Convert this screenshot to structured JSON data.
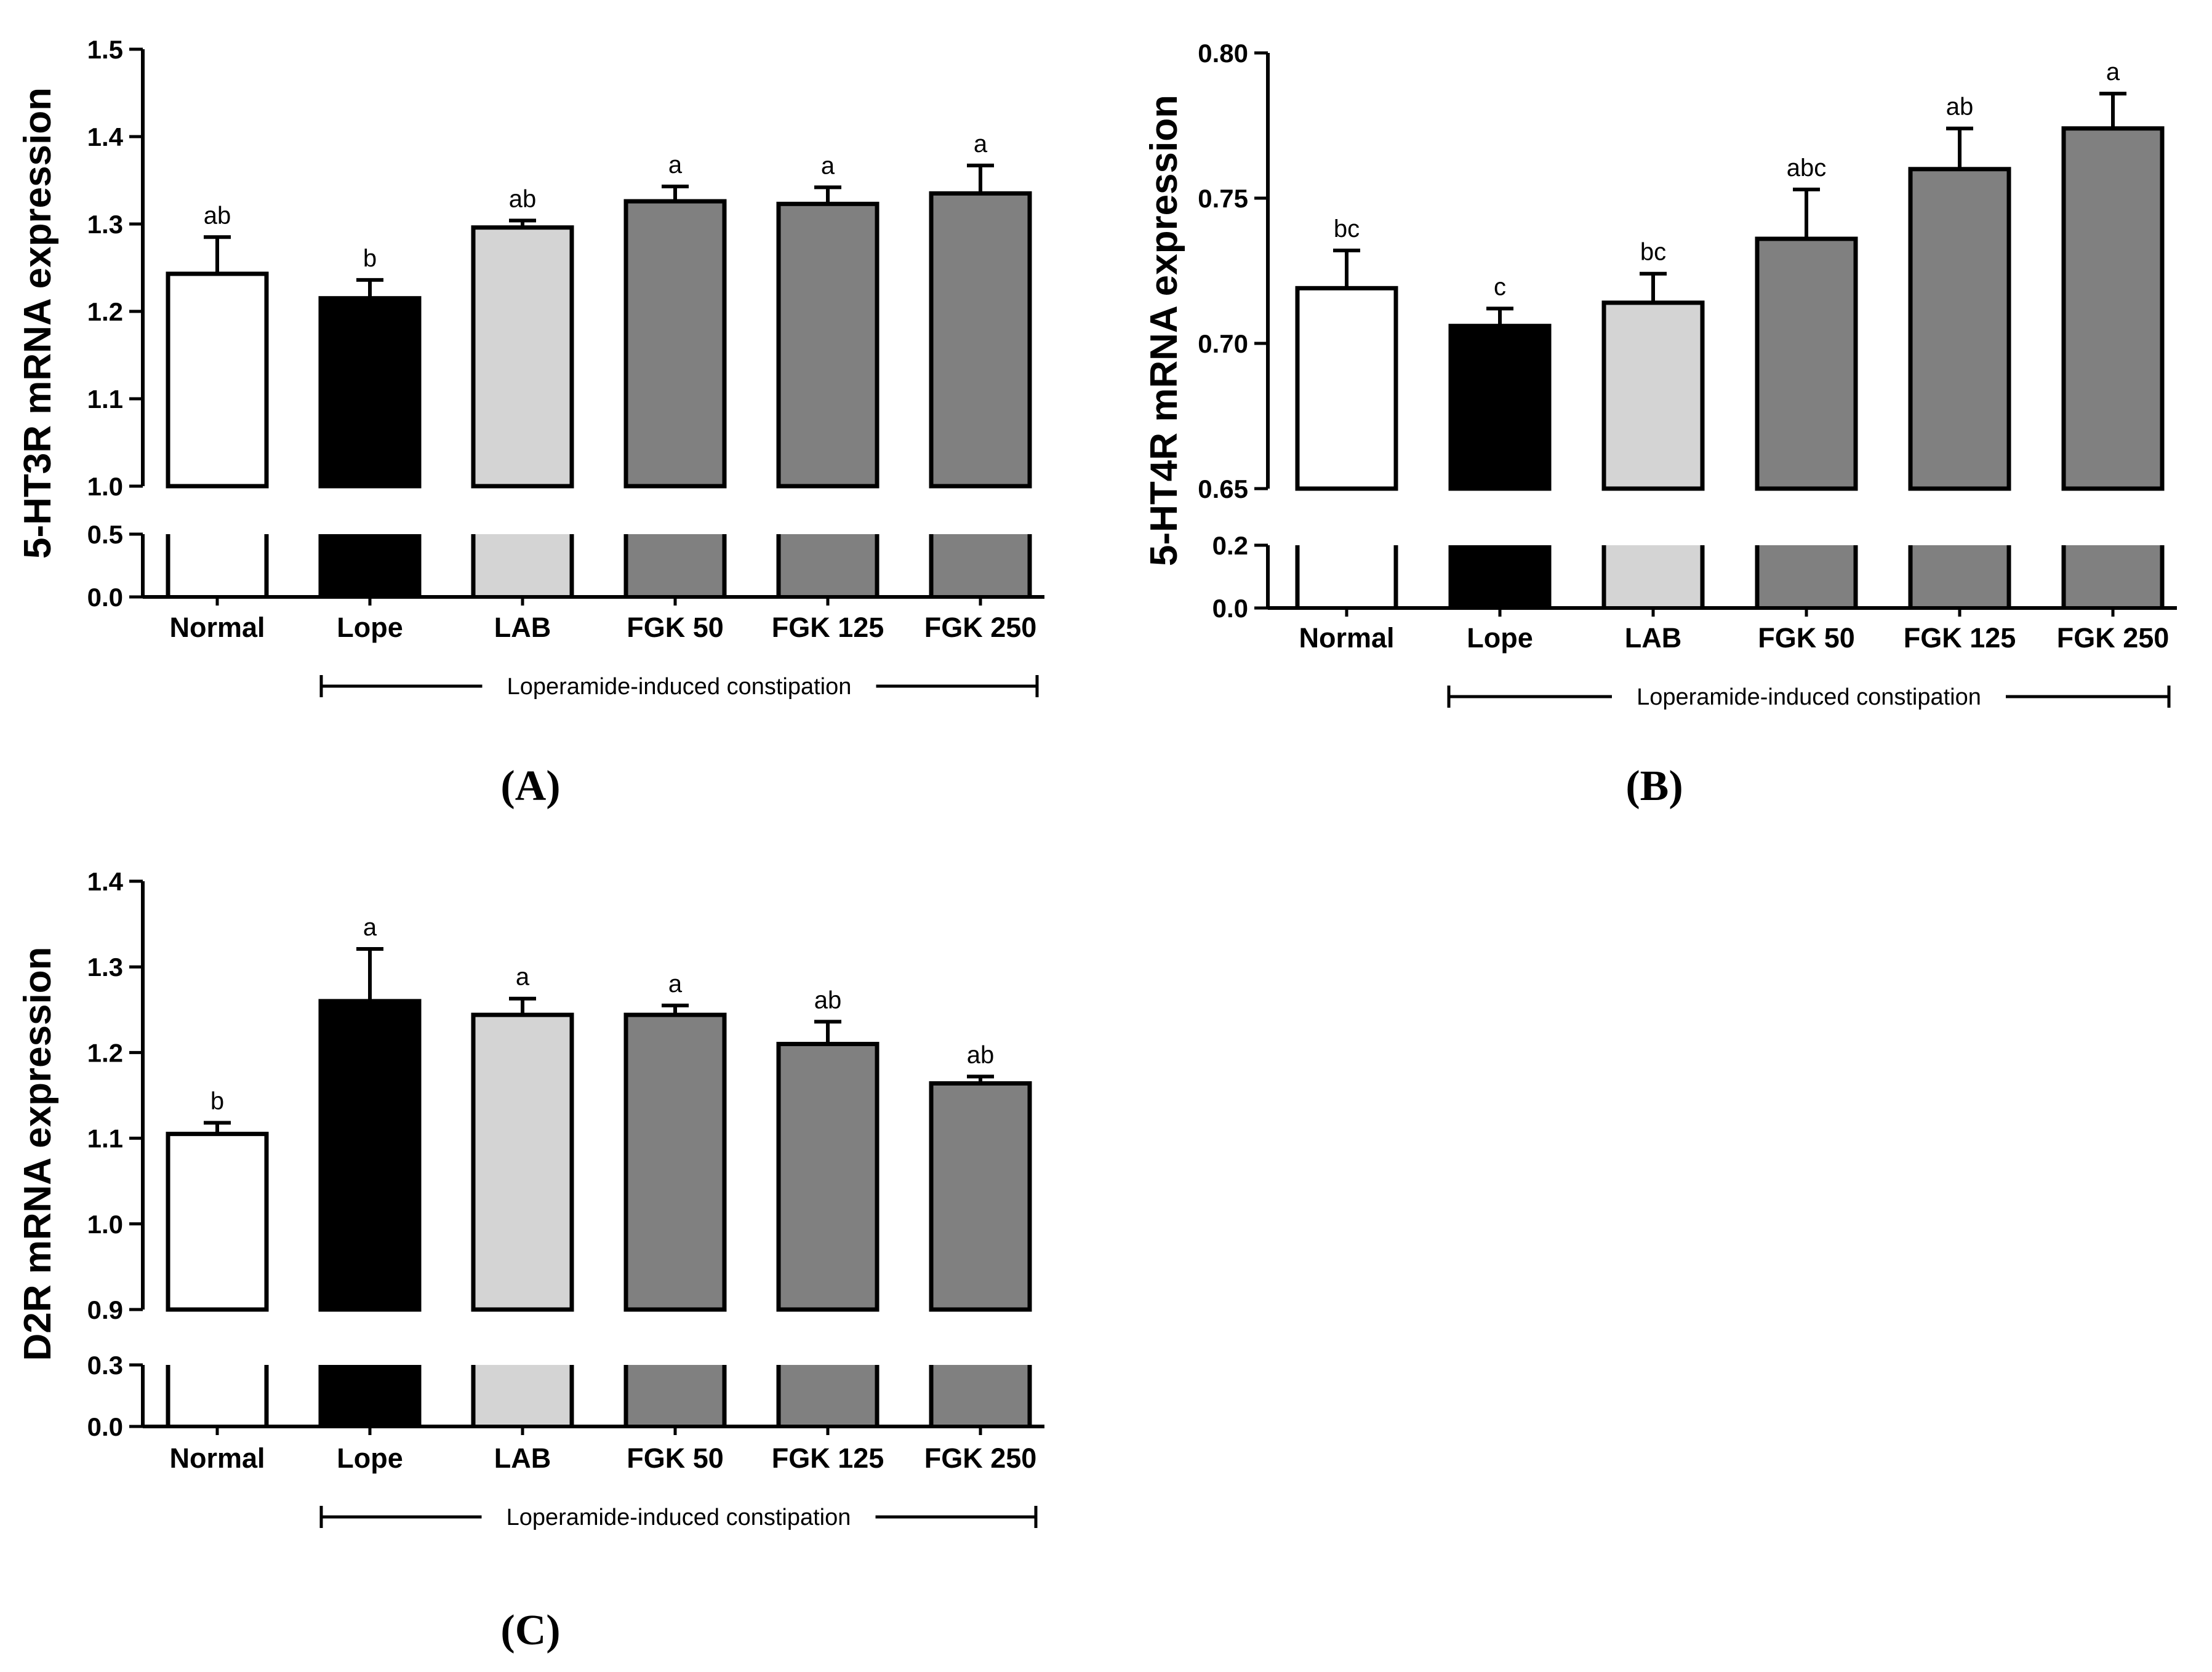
{
  "figure": {
    "panels": [
      {
        "id": "A",
        "caption": "(A)"
      },
      {
        "id": "B",
        "caption": "(B)"
      },
      {
        "id": "C",
        "caption": "(C)"
      }
    ]
  },
  "colors": {
    "Normal": "#ffffff",
    "Lope": "#000000",
    "LAB": "#d4d4d4",
    "FGK": "#808080",
    "axis": "#000000"
  },
  "chart_data": [
    {
      "panel": "A",
      "type": "bar",
      "ylabel": "5-HT3R mRNA expression",
      "categories": [
        "Normal",
        "Lope",
        "LAB",
        "FGK 50",
        "FGK 125",
        "FGK 250"
      ],
      "values": [
        1.243,
        1.215,
        1.296,
        1.326,
        1.323,
        1.335
      ],
      "errors": [
        0.042,
        0.021,
        0.008,
        0.017,
        0.019,
        0.032
      ],
      "significance": [
        "ab",
        "b",
        "ab",
        "a",
        "a",
        "a"
      ],
      "y_axis_break": true,
      "lower_segment": {
        "ylim": [
          0.0,
          0.5
        ],
        "ticks": [
          "0.0",
          "0.5"
        ]
      },
      "upper_segment": {
        "ylim": [
          1.0,
          1.5
        ],
        "ticks": [
          "1.0",
          "1.1",
          "1.2",
          "1.3",
          "1.4",
          "1.5"
        ]
      },
      "group_bracket": {
        "label": "Loperamide-induced constipation",
        "from": "Lope",
        "to": "FGK 250"
      }
    },
    {
      "panel": "B",
      "type": "bar",
      "ylabel": "5-HT4R mRNA expression",
      "categories": [
        "Normal",
        "Lope",
        "LAB",
        "FGK 50",
        "FGK 125",
        "FGK 250"
      ],
      "values": [
        0.719,
        0.706,
        0.714,
        0.736,
        0.76,
        0.774
      ],
      "errors": [
        0.013,
        0.006,
        0.01,
        0.017,
        0.014,
        0.012
      ],
      "significance": [
        "bc",
        "c",
        "bc",
        "abc",
        "ab",
        "a"
      ],
      "y_axis_break": true,
      "lower_segment": {
        "ylim": [
          0.0,
          0.2
        ],
        "ticks": [
          "0.0",
          "0.2"
        ]
      },
      "upper_segment": {
        "ylim": [
          0.65,
          0.8
        ],
        "ticks": [
          "0.65",
          "0.70",
          "0.75",
          "0.80"
        ]
      },
      "group_bracket": {
        "label": "Loperamide-induced constipation",
        "from": "Lope",
        "to": "FGK 250"
      }
    },
    {
      "panel": "C",
      "type": "bar",
      "ylabel": "D2R mRNA expression",
      "categories": [
        "Normal",
        "Lope",
        "LAB",
        "FGK 50",
        "FGK 125",
        "FGK 250"
      ],
      "values": [
        1.105,
        1.26,
        1.244,
        1.244,
        1.21,
        1.164
      ],
      "errors": [
        0.013,
        0.061,
        0.019,
        0.011,
        0.026,
        0.008
      ],
      "significance": [
        "b",
        "a",
        "a",
        "a",
        "ab",
        "ab"
      ],
      "y_axis_break": true,
      "lower_segment": {
        "ylim": [
          0.0,
          0.3
        ],
        "ticks": [
          "0.0",
          "0.3"
        ]
      },
      "upper_segment": {
        "ylim": [
          0.9,
          1.4
        ],
        "ticks": [
          "0.9",
          "1.0",
          "1.1",
          "1.2",
          "1.3",
          "1.4"
        ]
      },
      "group_bracket": {
        "label": "Loperamide-induced constipation",
        "from": "Lope",
        "to": "FGK 250"
      }
    }
  ]
}
